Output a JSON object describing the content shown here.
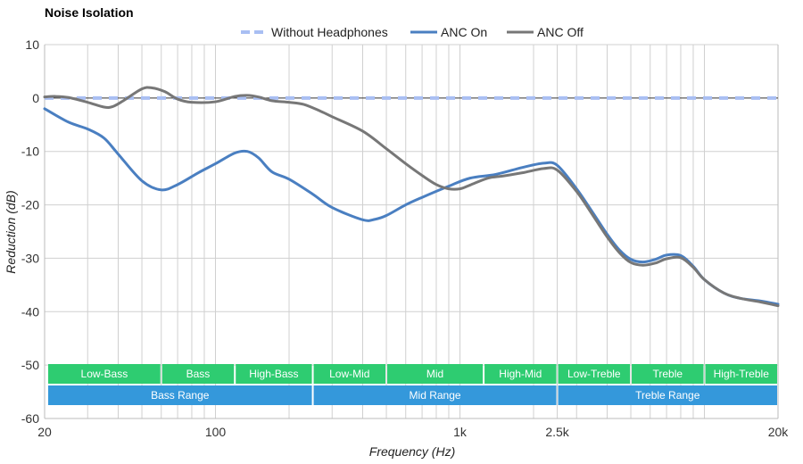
{
  "chart_data": {
    "type": "line",
    "title": "Noise Isolation",
    "xlabel": "Frequency (Hz)",
    "ylabel": "Reduction (dB)",
    "x_scale": "log",
    "xlim": [
      20,
      20000
    ],
    "ylim": [
      -60,
      10
    ],
    "x_ticks": [
      {
        "value": 20,
        "label": "20"
      },
      {
        "value": 100,
        "label": "100"
      },
      {
        "value": 1000,
        "label": "1k"
      },
      {
        "value": 2500,
        "label": "2.5k"
      },
      {
        "value": 20000,
        "label": "20k"
      }
    ],
    "y_ticks": [
      10,
      0,
      -10,
      -20,
      -30,
      -40,
      -50,
      -60
    ],
    "grid": true,
    "legend_position": "top",
    "series": [
      {
        "name": "Without Headphones",
        "color": "#a9bff3",
        "style": "dashed",
        "points": [
          [
            20,
            0
          ],
          [
            20000,
            0
          ]
        ]
      },
      {
        "name": "ANC On",
        "color": "#4a7fc1",
        "style": "solid",
        "points": [
          [
            20,
            -2
          ],
          [
            25,
            -4.5
          ],
          [
            30,
            -5.8
          ],
          [
            35,
            -7.5
          ],
          [
            40,
            -10.5
          ],
          [
            50,
            -15.5
          ],
          [
            60,
            -17.2
          ],
          [
            70,
            -16.2
          ],
          [
            85,
            -14
          ],
          [
            100,
            -12.3
          ],
          [
            120,
            -10.3
          ],
          [
            135,
            -10
          ],
          [
            150,
            -11.2
          ],
          [
            170,
            -13.8
          ],
          [
            200,
            -15.2
          ],
          [
            250,
            -18
          ],
          [
            300,
            -20.5
          ],
          [
            400,
            -22.8
          ],
          [
            450,
            -22.7
          ],
          [
            500,
            -22
          ],
          [
            600,
            -20
          ],
          [
            700,
            -18.6
          ],
          [
            900,
            -16.5
          ],
          [
            1100,
            -15
          ],
          [
            1400,
            -14.3
          ],
          [
            1800,
            -13
          ],
          [
            2200,
            -12.2
          ],
          [
            2500,
            -12.6
          ],
          [
            3000,
            -17
          ],
          [
            3500,
            -21.5
          ],
          [
            4000,
            -25.5
          ],
          [
            4500,
            -28.5
          ],
          [
            5000,
            -30.2
          ],
          [
            5600,
            -30.7
          ],
          [
            6300,
            -30.2
          ],
          [
            7000,
            -29.4
          ],
          [
            8000,
            -29.5
          ],
          [
            9000,
            -31.5
          ],
          [
            10000,
            -34
          ],
          [
            12000,
            -36.5
          ],
          [
            14000,
            -37.5
          ],
          [
            17000,
            -38
          ],
          [
            20000,
            -38.6
          ]
        ]
      },
      {
        "name": "ANC Off",
        "color": "#777777",
        "style": "solid",
        "points": [
          [
            20,
            0.2
          ],
          [
            22,
            0.3
          ],
          [
            25,
            0.1
          ],
          [
            30,
            -0.8
          ],
          [
            35,
            -1.7
          ],
          [
            38,
            -1.6
          ],
          [
            42,
            -0.5
          ],
          [
            50,
            1.7
          ],
          [
            55,
            1.9
          ],
          [
            62,
            1.2
          ],
          [
            70,
            -0.2
          ],
          [
            80,
            -0.8
          ],
          [
            100,
            -0.7
          ],
          [
            120,
            0.3
          ],
          [
            135,
            0.5
          ],
          [
            150,
            0.2
          ],
          [
            170,
            -0.5
          ],
          [
            200,
            -0.8
          ],
          [
            230,
            -1.2
          ],
          [
            270,
            -2.5
          ],
          [
            300,
            -3.5
          ],
          [
            400,
            -6.2
          ],
          [
            500,
            -9.5
          ],
          [
            600,
            -12.3
          ],
          [
            700,
            -14.5
          ],
          [
            800,
            -16.2
          ],
          [
            900,
            -17
          ],
          [
            1000,
            -17
          ],
          [
            1100,
            -16.3
          ],
          [
            1300,
            -15
          ],
          [
            1500,
            -14.6
          ],
          [
            1800,
            -14
          ],
          [
            2200,
            -13.2
          ],
          [
            2500,
            -13.5
          ],
          [
            3000,
            -17.5
          ],
          [
            3500,
            -22
          ],
          [
            4000,
            -26
          ],
          [
            4500,
            -29
          ],
          [
            5000,
            -30.8
          ],
          [
            5600,
            -31.3
          ],
          [
            6300,
            -30.9
          ],
          [
            7000,
            -30.1
          ],
          [
            8000,
            -29.9
          ],
          [
            9000,
            -31.7
          ],
          [
            10000,
            -34
          ],
          [
            12000,
            -36.5
          ],
          [
            14000,
            -37.5
          ],
          [
            17000,
            -38.2
          ],
          [
            20000,
            -38.9
          ]
        ]
      }
    ],
    "bands": [
      {
        "label": "Low-Bass",
        "from": 20,
        "to": 60,
        "row": 0,
        "color": "#2ecc71"
      },
      {
        "label": "Bass",
        "from": 60,
        "to": 120,
        "row": 0,
        "color": "#2ecc71"
      },
      {
        "label": "High-Bass",
        "from": 120,
        "to": 250,
        "row": 0,
        "color": "#2ecc71"
      },
      {
        "label": "Low-Mid",
        "from": 250,
        "to": 500,
        "row": 0,
        "color": "#2ecc71"
      },
      {
        "label": "Mid",
        "from": 500,
        "to": 1250,
        "row": 0,
        "color": "#2ecc71"
      },
      {
        "label": "High-Mid",
        "from": 1250,
        "to": 2500,
        "row": 0,
        "color": "#2ecc71"
      },
      {
        "label": "Low-Treble",
        "from": 2500,
        "to": 5000,
        "row": 0,
        "color": "#2ecc71"
      },
      {
        "label": "Treble",
        "from": 5000,
        "to": 10000,
        "row": 0,
        "color": "#2ecc71"
      },
      {
        "label": "High-Treble",
        "from": 10000,
        "to": 20000,
        "row": 0,
        "color": "#2ecc71"
      },
      {
        "label": "Bass Range",
        "from": 20,
        "to": 250,
        "row": 1,
        "color": "#3498db"
      },
      {
        "label": "Mid Range",
        "from": 250,
        "to": 2500,
        "row": 1,
        "color": "#3498db"
      },
      {
        "label": "Treble Range",
        "from": 2500,
        "to": 20000,
        "row": 1,
        "color": "#3498db"
      }
    ]
  }
}
